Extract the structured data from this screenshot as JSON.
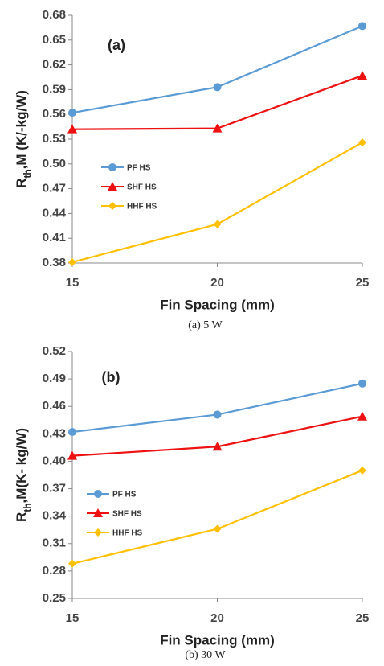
{
  "chart_data": [
    {
      "type": "line",
      "panel_label": "(a)",
      "caption": "(a)  5  W",
      "xlabel": "Fin Spacing (mm)",
      "ylabel": [
        "R",
        "th",
        ",M (K/-kg/W)"
      ],
      "x": [
        15,
        20,
        25
      ],
      "xlim": [
        15,
        25
      ],
      "xticks": [
        15,
        20,
        25
      ],
      "ylim": [
        0.38,
        0.68
      ],
      "yticks": [
        0.38,
        0.41,
        0.44,
        0.47,
        0.5,
        0.53,
        0.56,
        0.59,
        0.62,
        0.65,
        0.68
      ],
      "grid": false,
      "series": [
        {
          "name": "PF HS",
          "color": "#5b9bd5",
          "marker": "circle",
          "values": [
            0.562,
            0.593,
            0.667
          ]
        },
        {
          "name": "SHF HS",
          "color": "#ee1111",
          "marker": "triangle",
          "values": [
            0.542,
            0.543,
            0.607
          ]
        },
        {
          "name": "HHF HS",
          "color": "#ffc000",
          "marker": "diamond",
          "values": [
            0.381,
            0.427,
            0.526
          ]
        }
      ]
    },
    {
      "type": "line",
      "panel_label": "(b)",
      "caption": "(b)  30  W",
      "xlabel": "Fin Spacing (mm)",
      "ylabel": [
        "R",
        "th",
        ",M(K- kg/W)"
      ],
      "x": [
        15,
        20,
        25
      ],
      "xlim": [
        15,
        25
      ],
      "xticks": [
        15,
        20,
        25
      ],
      "ylim": [
        0.25,
        0.52
      ],
      "yticks": [
        0.25,
        0.28,
        0.31,
        0.34,
        0.37,
        0.4,
        0.43,
        0.46,
        0.49,
        0.52
      ],
      "grid": false,
      "series": [
        {
          "name": "PF HS",
          "color": "#5b9bd5",
          "marker": "circle",
          "values": [
            0.432,
            0.451,
            0.485
          ]
        },
        {
          "name": "SHF HS",
          "color": "#ee1111",
          "marker": "triangle",
          "values": [
            0.406,
            0.416,
            0.449
          ]
        },
        {
          "name": "HHF HS",
          "color": "#ffc000",
          "marker": "diamond",
          "values": [
            0.288,
            0.326,
            0.39
          ]
        }
      ]
    }
  ]
}
